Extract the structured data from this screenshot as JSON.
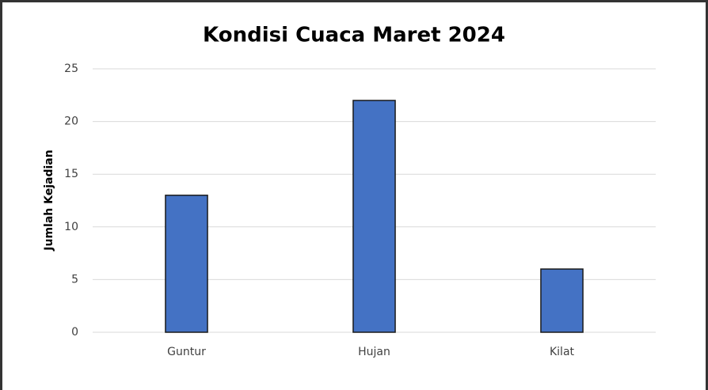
{
  "chart_data": {
    "type": "bar",
    "title": "Kondisi Cuaca Maret 2024",
    "y_label": "Jumlah Kejadian",
    "categories": [
      "Guntur",
      "Hujan",
      "Kilat"
    ],
    "values": [
      13,
      22,
      6
    ],
    "color": "#4472c4",
    "ylim": [
      0,
      25
    ],
    "yticks": [
      0,
      5,
      10,
      15,
      20,
      25
    ],
    "grid": true
  }
}
